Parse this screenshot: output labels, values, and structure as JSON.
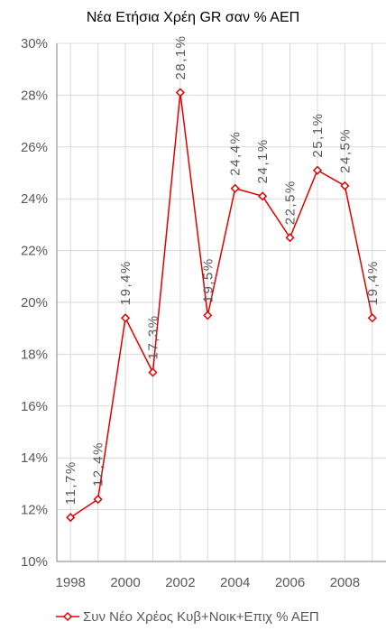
{
  "chart_data": {
    "type": "line",
    "title": "Νέα Ετήσια Χρέη GR σαν % ΑΕΠ",
    "xlabel": "",
    "ylabel": "",
    "x": [
      1998,
      1999,
      2000,
      2001,
      2002,
      2003,
      2004,
      2005,
      2006,
      2007,
      2008,
      2009
    ],
    "x_tick_labels": [
      "1998",
      "2000",
      "2002",
      "2004",
      "2006",
      "2008"
    ],
    "y_tick_labels": [
      "10%",
      "12%",
      "14%",
      "16%",
      "18%",
      "20%",
      "22%",
      "24%",
      "26%",
      "28%",
      "30%"
    ],
    "ylim": [
      10,
      30
    ],
    "grid": true,
    "legend_position": "bottom",
    "series": [
      {
        "name": "Συν Νέο Χρέος Κυβ+Νοικ+Επιχ % ΑΕΠ",
        "color": "#e00000",
        "values": [
          11.7,
          12.4,
          19.4,
          17.3,
          28.1,
          19.5,
          24.4,
          24.1,
          22.5,
          25.1,
          24.5,
          19.4
        ],
        "labels": [
          "11,7%",
          "12,4%",
          "19,4%",
          "17,3%",
          "28,1%",
          "19,5%",
          "24,4%",
          "24,1%",
          "22,5%",
          "25,1%",
          "24,5%",
          "19,4%"
        ]
      }
    ]
  }
}
